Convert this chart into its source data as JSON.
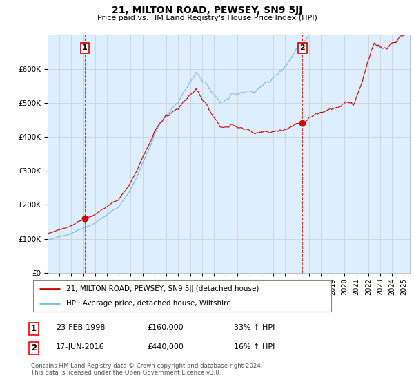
{
  "title": "21, MILTON ROAD, PEWSEY, SN9 5JJ",
  "subtitle": "Price paid vs. HM Land Registry's House Price Index (HPI)",
  "hpi_color": "#7ab8e8",
  "price_color": "#cc0000",
  "vline_color": "#cc0000",
  "plot_bg_color": "#ddeeff",
  "ylim": [
    0,
    700000
  ],
  "yticks": [
    0,
    100000,
    200000,
    300000,
    400000,
    500000,
    600000
  ],
  "ytick_labels": [
    "£0",
    "£100K",
    "£200K",
    "£300K",
    "£400K",
    "£500K",
    "£600K"
  ],
  "transaction1": {
    "date": "23-FEB-1998",
    "price": 160000,
    "label": "1",
    "hpi_pct": "33% ↑ HPI",
    "x": 1998.14
  },
  "transaction2": {
    "date": "17-JUN-2016",
    "price": 440000,
    "label": "2",
    "hpi_pct": "16% ↑ HPI",
    "x": 2016.46
  },
  "legend_line1": "21, MILTON ROAD, PEWSEY, SN9 5JJ (detached house)",
  "legend_line2": "HPI: Average price, detached house, Wiltshire",
  "footer": "Contains HM Land Registry data © Crown copyright and database right 2024.\nThis data is licensed under the Open Government Licence v3.0.",
  "background_color": "#ffffff",
  "grid_color": "#cccccc",
  "xlim_start": 1995.0,
  "xlim_end": 2025.5
}
